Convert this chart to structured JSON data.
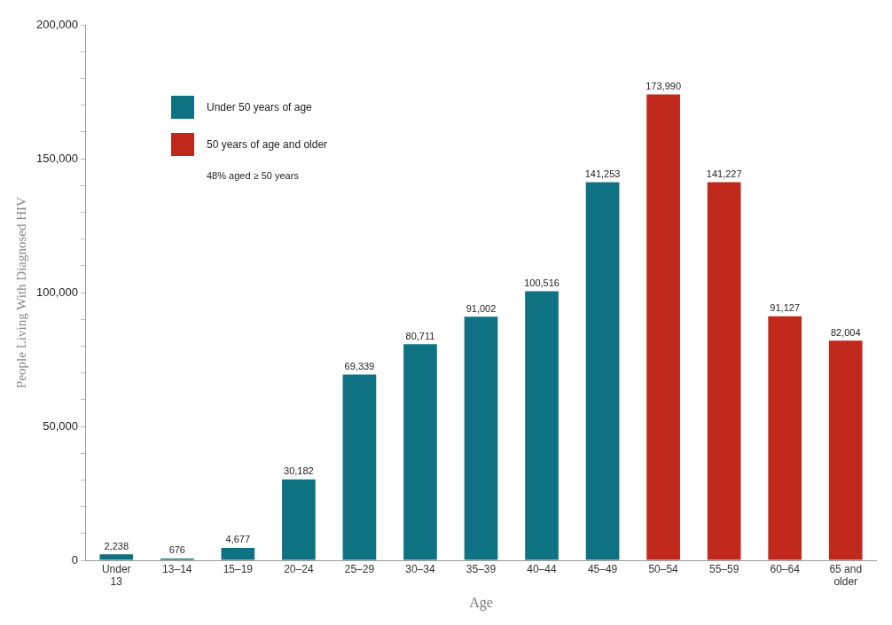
{
  "chart_data": {
    "type": "bar",
    "xlabel": "Age",
    "ylabel": "People Living With Diagnosed HIV",
    "categories": [
      "Under\n13",
      "13–14",
      "15–19",
      "20–24",
      "25–29",
      "30–34",
      "35–39",
      "40–44",
      "45–49",
      "50–54",
      "55–59",
      "60–64",
      "65 and\nolder"
    ],
    "series": [
      {
        "name": "Under 50 years of age",
        "color": "#0e7282",
        "values": [
          2238,
          676,
          4677,
          30182,
          69339,
          80711,
          91002,
          100516,
          141253,
          null,
          null,
          null,
          null
        ],
        "value_labels": [
          "2,238",
          "676",
          "4,677",
          "30,182",
          "69,339",
          "80,711",
          "91,002",
          "100,516",
          "141,253",
          null,
          null,
          null,
          null
        ]
      },
      {
        "name": "50 years of age and older",
        "color": "#c0281c",
        "values": [
          null,
          null,
          null,
          null,
          null,
          null,
          null,
          null,
          null,
          173990,
          141227,
          91127,
          82004
        ],
        "value_labels": [
          null,
          null,
          null,
          null,
          null,
          null,
          null,
          null,
          null,
          "173,990",
          "141,227",
          "91,127",
          "82,004"
        ]
      }
    ],
    "annotations": [
      "48% aged ≥ 50 years"
    ],
    "ylim": [
      0,
      200000
    ],
    "yticks": [
      {
        "value": 0,
        "label": "0"
      },
      {
        "value": 10000,
        "label": null
      },
      {
        "value": 20000,
        "label": null
      },
      {
        "value": 30000,
        "label": null
      },
      {
        "value": 40000,
        "label": null
      },
      {
        "value": 50000,
        "label": "50,000"
      },
      {
        "value": 60000,
        "label": null
      },
      {
        "value": 70000,
        "label": null
      },
      {
        "value": 80000,
        "label": null
      },
      {
        "value": 90000,
        "label": null
      },
      {
        "value": 100000,
        "label": "100,000"
      },
      {
        "value": 110000,
        "label": null
      },
      {
        "value": 120000,
        "label": null
      },
      {
        "value": 130000,
        "label": null
      },
      {
        "value": 140000,
        "label": null
      },
      {
        "value": 150000,
        "label": "150,000"
      },
      {
        "value": 160000,
        "label": null
      },
      {
        "value": 170000,
        "label": null
      },
      {
        "value": 180000,
        "label": null
      },
      {
        "value": 190000,
        "label": null
      },
      {
        "value": 200000,
        "label": "200,000"
      }
    ],
    "grid": false,
    "legend": "top left"
  }
}
